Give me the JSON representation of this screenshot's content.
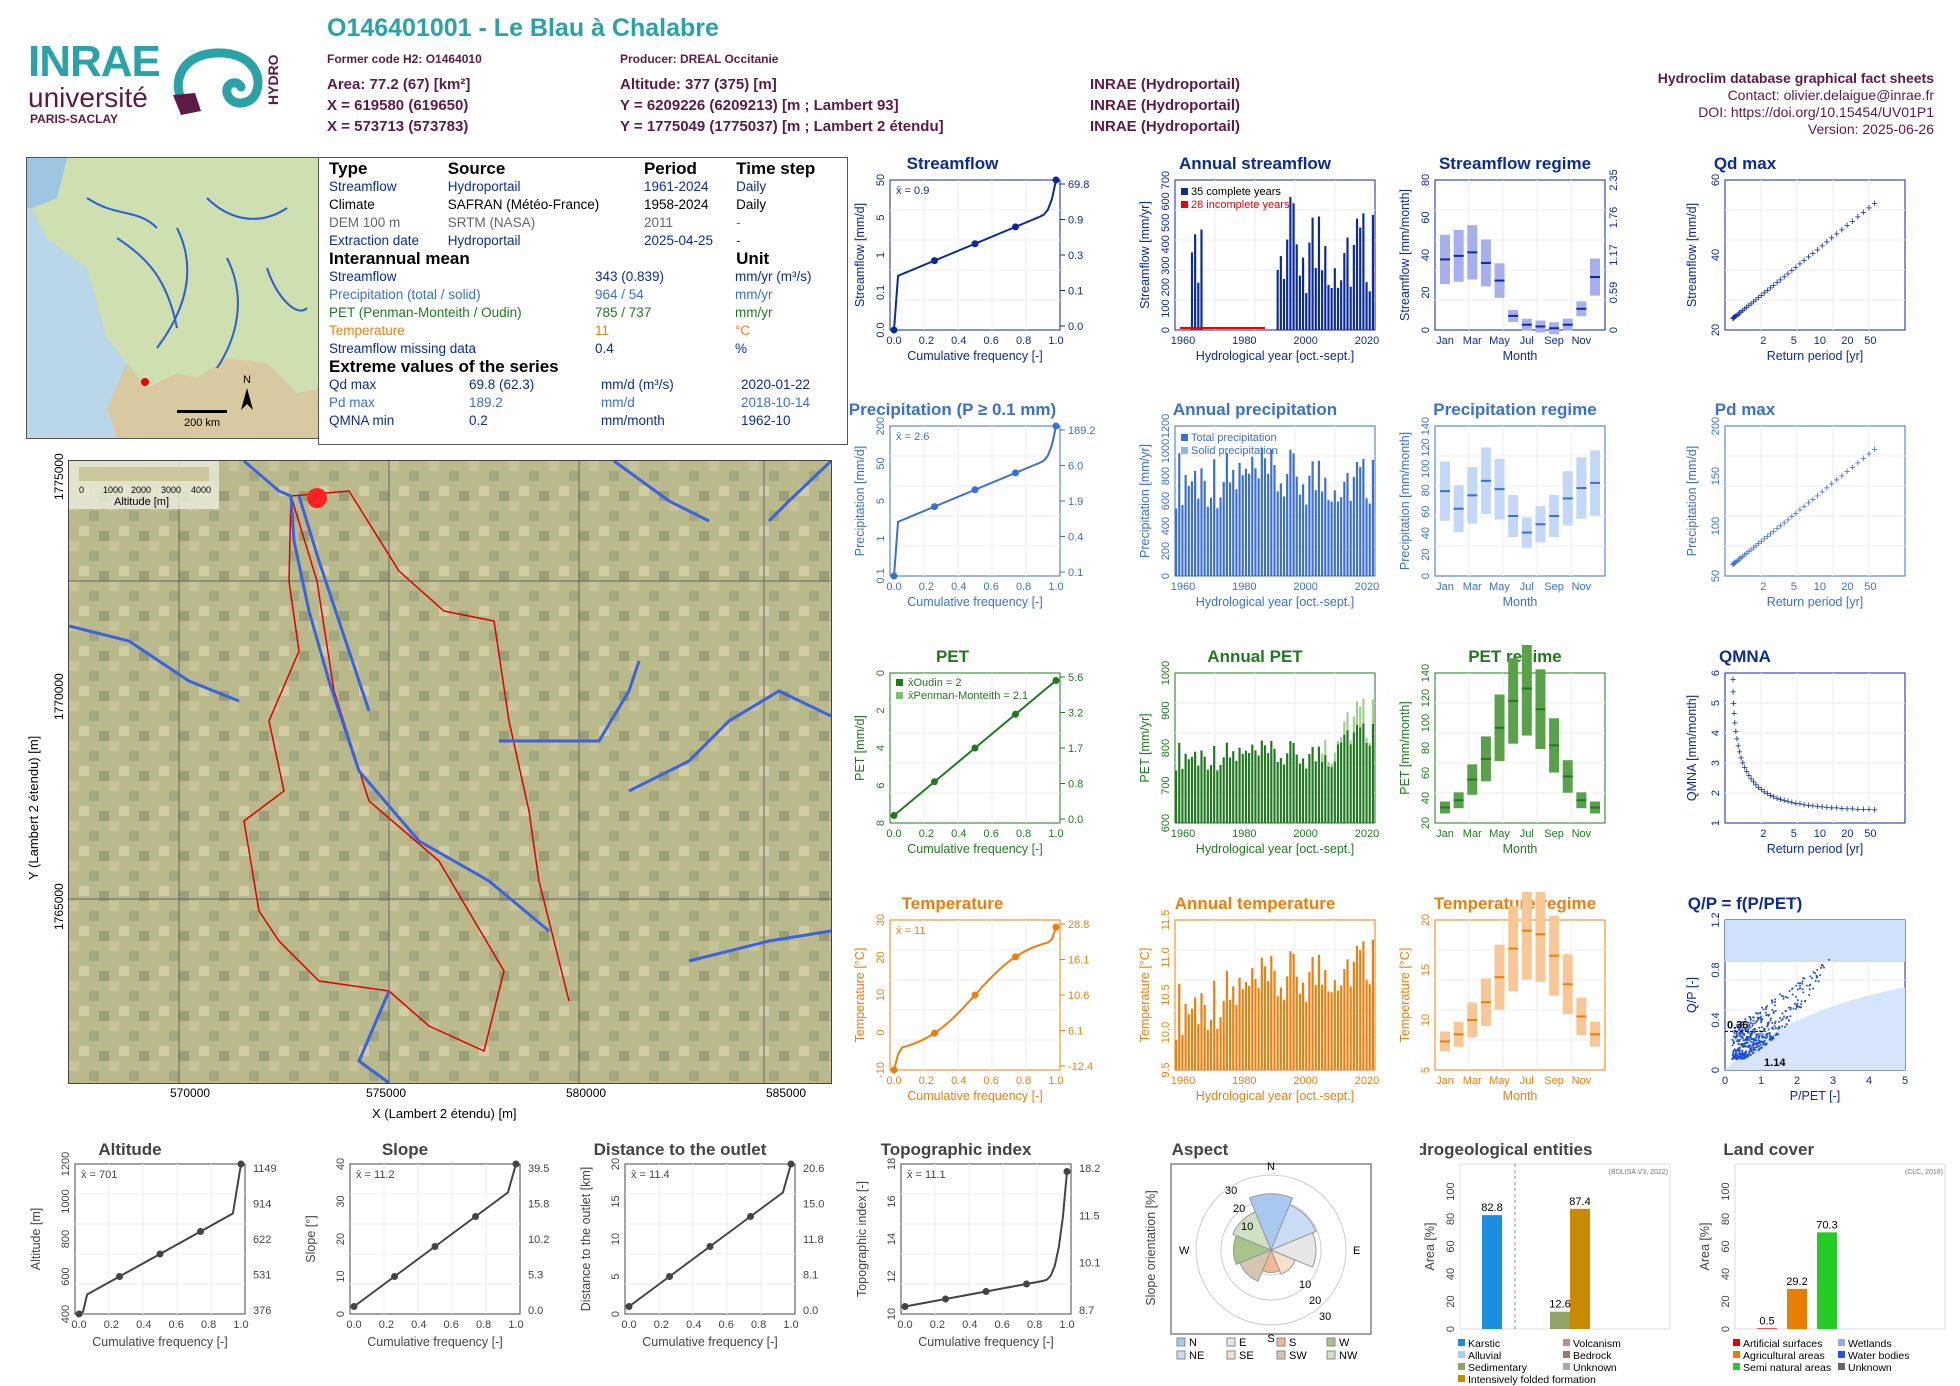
{
  "header": {
    "title": "O146401001 - Le Blau à Chalabre",
    "former_code": "Former code H2: O1464010",
    "producer": "Producer: DREAL Occitanie",
    "area": "Area: 77.2 (67) [km²]",
    "altitude": "Altitude: 377 (375) [m]",
    "x93": "X = 619580 (619650)",
    "y93": "Y = 6209226 (6209213) [m ; Lambert 93]",
    "x2": "X = 573713 (573783)",
    "y2": "Y = 1775049 (1775037) [m ; Lambert 2 étendu]",
    "src1": "INRAE (Hydroportail)",
    "src2": "INRAE (Hydroportail)",
    "src3": "INRAE (Hydroportail)"
  },
  "logos": {
    "inrae": "INRAE",
    "universite": "université",
    "paris_saclay": "PARIS-SACLAY",
    "hydro": "HYDRO"
  },
  "right_info": {
    "line1": "Hydroclim database graphical fact sheets",
    "line2": "Contact: olivier.delaigue@inrae.fr",
    "line3": "DOI: https://doi.org/10.15454/UV01P1",
    "line4": "Version: 2025-06-26"
  },
  "france_map": {
    "scale": "200 km",
    "north": "N"
  },
  "info_table": {
    "headers": [
      "Type",
      "Source",
      "Period",
      "Time step"
    ],
    "rows": [
      [
        "Streamflow",
        "Hydroportail",
        "1961-2024",
        "Daily"
      ],
      [
        "Climate",
        "SAFRAN (Météo-France)",
        "1958-2024",
        "Daily"
      ],
      [
        "DEM 100 m",
        "SRTM (NASA)",
        "2011",
        "-"
      ],
      [
        "Extraction date",
        "Hydroportail",
        "2025-04-25",
        "-"
      ]
    ],
    "interannual_title": "Interannual mean",
    "unit_title": "Unit",
    "interannual": [
      [
        "Streamflow",
        "343 (0.839)",
        "mm/yr (m³/s)"
      ],
      [
        "Precipitation (total / solid)",
        "964 / 54",
        "mm/yr"
      ],
      [
        "PET (Penman-Monteith / Oudin)",
        "785 / 737",
        "mm/yr"
      ],
      [
        "Temperature",
        "11",
        "°C"
      ],
      [
        "Streamflow missing data",
        "0.4",
        "%"
      ]
    ],
    "extreme_title": "Extreme values of the series",
    "extremes": [
      [
        "Qd max",
        "69.8 (62.3)",
        "mm/d (m³/s)",
        "2020-01-22"
      ],
      [
        "Pd max",
        "189.2",
        "mm/d",
        "2018-10-14"
      ],
      [
        "QMNA min",
        "0.2",
        "mm/month",
        "1962-10"
      ]
    ]
  },
  "basin_map": {
    "legend_ticks": [
      "0",
      "1000",
      "2000",
      "3000",
      "4000"
    ],
    "legend_label": "Altitude [m]",
    "xlabel": "X (Lambert 2 étendu) [m]",
    "ylabel": "Y (Lambert 2 étendu) [m]",
    "xticks": [
      "570000",
      "575000",
      "580000",
      "585000"
    ],
    "yticks": [
      "1775000",
      "1770000",
      "1765000"
    ]
  },
  "colors": {
    "flow": "#0b2aa0",
    "precip": "#3a6fd8",
    "pet": "#1f7a1f",
    "temp": "#f07d0a",
    "title_teal": "#2aa3a8",
    "maroon": "#5e1a47"
  },
  "chart_data": [
    {
      "type": "line",
      "title": "Streamflow",
      "xlabel": "Cumulative frequency [-]",
      "ylabel": "Streamflow [mm/d]",
      "mean_label": "x̄ = 0.9",
      "right_labels": [
        "69.8",
        "0.9",
        "0.3",
        "0.1",
        "0.0"
      ],
      "left_ticks": [
        "50",
        "5",
        "1",
        "0.1",
        "0.0"
      ]
    },
    {
      "type": "bar",
      "title": "Annual streamflow",
      "xlabel": "Hydrological year [oct.-sept.]",
      "ylabel": "Streamflow [mm/yr]",
      "legend": [
        "35 complete years",
        "28 incomplete years"
      ],
      "yticks": [
        "0",
        "100",
        "200",
        "300",
        "400",
        "500",
        "600",
        "700"
      ],
      "xticks": [
        "1960",
        "1980",
        "2000",
        "2020"
      ]
    },
    {
      "type": "bar",
      "title": "Streamflow regime",
      "xlabel": "Month",
      "ylabel": "Streamflow [mm/month]",
      "months": [
        "Jan",
        "Mar",
        "May",
        "Jul",
        "Sep",
        "Nov"
      ],
      "yticks": [
        "0",
        "20",
        "40",
        "60",
        "80"
      ],
      "right_ticks": [
        "0",
        "0.59",
        "1.17",
        "1.76",
        "2.35"
      ],
      "median": [
        40,
        42,
        44,
        38,
        28,
        8,
        3,
        2,
        1,
        3,
        12,
        30
      ]
    },
    {
      "type": "scatter",
      "title": "Qd max",
      "xlabel": "Return period [yr]",
      "ylabel": "Streamflow [mm/d]",
      "xticks": [
        "2",
        "5",
        "10",
        "20",
        "50"
      ],
      "yticks": [
        "20",
        "40",
        "60"
      ]
    },
    {
      "type": "line",
      "title": "Precipitation (P ≥ 0.1 mm)",
      "xlabel": "Cumulative frequency [-]",
      "ylabel": "Precipitation [mm/d]",
      "mean_label": "x̄ = 2.6",
      "right_labels": [
        "189.2",
        "6.0",
        "1.9",
        "0.4",
        "0.1"
      ],
      "left_ticks": [
        "200",
        "50",
        "5",
        "1",
        "0.1"
      ]
    },
    {
      "type": "bar",
      "title": "Annual precipitation",
      "xlabel": "Hydrological year [oct.-sept.]",
      "ylabel": "Precipitation [mm/yr]",
      "legend": [
        "Total precipitation",
        "Solid precipitation"
      ],
      "yticks": [
        "0",
        "200",
        "400",
        "600",
        "800",
        "1000",
        "1200"
      ],
      "xticks": [
        "1960",
        "1980",
        "2000",
        "2020"
      ]
    },
    {
      "type": "bar",
      "title": "Precipitation regime",
      "xlabel": "Month",
      "ylabel": "Precipitation [mm/month]",
      "months": [
        "Jan",
        "Mar",
        "May",
        "Jul",
        "Sep",
        "Nov"
      ],
      "yticks": [
        "0",
        "20",
        "40",
        "60",
        "80",
        "100",
        "120",
        "140"
      ],
      "median": [
        82,
        65,
        78,
        92,
        84,
        58,
        42,
        50,
        58,
        75,
        85,
        90
      ]
    },
    {
      "type": "scatter",
      "title": "Pd max",
      "xlabel": "Return period [yr]",
      "ylabel": "Precipitation [mm/d]",
      "xticks": [
        "2",
        "5",
        "10",
        "20",
        "50"
      ],
      "yticks": [
        "50",
        "100",
        "150",
        "200"
      ]
    },
    {
      "type": "line",
      "title": "PET",
      "xlabel": "Cumulative frequency [-]",
      "ylabel": "PET [mm/d]",
      "mean_labels": [
        "x̄Oudin = 2",
        "x̄Penman-Monteith = 2.1"
      ],
      "right_labels": [
        "5.6",
        "3.2",
        "1.7",
        "0.8",
        "0.0"
      ],
      "left_ticks": [
        "0",
        "2",
        "4",
        "6",
        "8"
      ]
    },
    {
      "type": "bar",
      "title": "Annual PET",
      "xlabel": "Hydrological year [oct.-sept.]",
      "ylabel": "PET [mm/yr]",
      "yticks": [
        "600",
        "700",
        "800",
        "900",
        "1000"
      ],
      "xticks": [
        "1960",
        "1980",
        "2000",
        "2020"
      ]
    },
    {
      "type": "bar",
      "title": "PET regime",
      "xlabel": "Month",
      "ylabel": "PET [mm/month]",
      "months": [
        "Jan",
        "Mar",
        "May",
        "Jul",
        "Sep",
        "Nov"
      ],
      "yticks": [
        "20",
        "40",
        "60",
        "80",
        "100",
        "120",
        "140"
      ],
      "median": [
        15,
        22,
        42,
        62,
        92,
        118,
        130,
        110,
        75,
        45,
        22,
        15
      ]
    },
    {
      "type": "scatter",
      "title": "QMNA",
      "xlabel": "Return period [yr]",
      "ylabel": "QMNA [mm/month]",
      "xticks": [
        "2",
        "5",
        "10",
        "20",
        "50"
      ],
      "yticks": [
        "1",
        "2",
        "3",
        "4",
        "5",
        "6"
      ]
    },
    {
      "type": "line",
      "title": "Temperature",
      "xlabel": "Cumulative frequency [-]",
      "ylabel": "Temperature [°C]",
      "mean_label": "x̄ = 11",
      "right_labels": [
        "28.8",
        "16.1",
        "10.6",
        "6.1",
        "-12.4"
      ],
      "left_ticks": [
        "30",
        "20",
        "10",
        "0",
        "-10"
      ]
    },
    {
      "type": "bar",
      "title": "Annual temperature",
      "xlabel": "Hydrological year [oct.-sept.]",
      "ylabel": "Temperature [°C]",
      "yticks": [
        "9.5",
        "10.0",
        "10.5",
        "11.0",
        "11.5"
      ],
      "xticks": [
        "1960",
        "1980",
        "2000",
        "2020"
      ]
    },
    {
      "type": "bar",
      "title": "Temperature regime",
      "xlabel": "Month",
      "ylabel": "Temperature [°C]",
      "months": [
        "Jan",
        "Mar",
        "May",
        "Jul",
        "Sep",
        "Nov"
      ],
      "yticks": [
        "5",
        "10",
        "15",
        "20"
      ],
      "median": [
        4,
        5,
        7,
        9.5,
        13,
        17,
        19.5,
        19,
        16,
        12,
        7.5,
        5
      ]
    },
    {
      "type": "scatter",
      "title": "Q/P = f(P/PET)",
      "xlabel": "P/PET [-]",
      "ylabel": "Q/P [-]",
      "xticks": [
        "0",
        "1",
        "2",
        "3",
        "4",
        "5"
      ],
      "yticks": [
        "0",
        "0.4",
        "0.8",
        "1.2"
      ],
      "annotations": [
        "0.36",
        "1.14"
      ]
    },
    {
      "type": "line",
      "title": "Altitude",
      "xlabel": "Cumulative frequency [-]",
      "ylabel": "Altitude [m]",
      "mean_label": "x̄ = 701",
      "right_labels": [
        "1149",
        "914",
        "622",
        "531",
        "376"
      ],
      "left_ticks": [
        "400",
        "600",
        "800",
        "1000",
        "1200"
      ]
    },
    {
      "type": "line",
      "title": "Slope",
      "xlabel": "Cumulative frequency [-]",
      "ylabel": "Slope [°]",
      "mean_label": "x̄ = 11.2",
      "right_labels": [
        "39.5",
        "15.8",
        "10.2",
        "5.3",
        "0.0"
      ],
      "left_ticks": [
        "0",
        "10",
        "20",
        "30",
        "40"
      ]
    },
    {
      "type": "line",
      "title": "Distance to the outlet",
      "xlabel": "Cumulative frequency [-]",
      "ylabel": "Distance to the outlet [km]",
      "mean_label": "x̄ = 11.4",
      "right_labels": [
        "20.6",
        "15.0",
        "11.8",
        "8.1",
        "0.0"
      ],
      "left_ticks": [
        "0",
        "5",
        "10",
        "15",
        "20"
      ]
    },
    {
      "type": "line",
      "title": "Topographic index",
      "xlabel": "Cumulative frequency [-]",
      "ylabel": "Topographic index [-]",
      "mean_label": "x̄ = 11.1",
      "right_labels": [
        "18.2",
        "11.5",
        "10.1",
        "8.7"
      ],
      "left_ticks": [
        "10",
        "12",
        "14",
        "16",
        "18"
      ]
    },
    {
      "type": "pie",
      "title": "Aspect",
      "ylabel": "Slope orientation [%]",
      "legend": [
        "N",
        "E",
        "S",
        "W",
        "NE",
        "SE",
        "SW",
        "NW"
      ],
      "rings": [
        "10",
        "20",
        "30"
      ]
    },
    {
      "type": "bar",
      "title": "Hydrogeological entities",
      "ylabel": "Area [%]",
      "note": "(BDLISA V3, 2022)",
      "categories": [
        "Karstic",
        "Intensively folded formation",
        "Sedimentary"
      ],
      "values": [
        82.8,
        87.4,
        12.6
      ],
      "legend": [
        "Karstic",
        "Volcanism",
        "Alluvial",
        "Bedrock",
        "Sedimentary",
        "Unknown",
        "Intensively folded formation"
      ],
      "yticks": [
        "0",
        "20",
        "40",
        "60",
        "80",
        "100"
      ]
    },
    {
      "type": "bar",
      "title": "Land cover",
      "ylabel": "Area [%]",
      "note": "(CLC, 2018)",
      "categories": [
        "Artificial surfaces",
        "Agricultural areas",
        "Semi natural areas"
      ],
      "values": [
        0.5,
        29.2,
        70.3
      ],
      "legend": [
        "Artificial surfaces",
        "Wetlands",
        "Agricultural areas",
        "Water bodies",
        "Semi natural areas",
        "Unknown"
      ],
      "yticks": [
        "0",
        "20",
        "40",
        "60",
        "80",
        "100"
      ]
    }
  ]
}
